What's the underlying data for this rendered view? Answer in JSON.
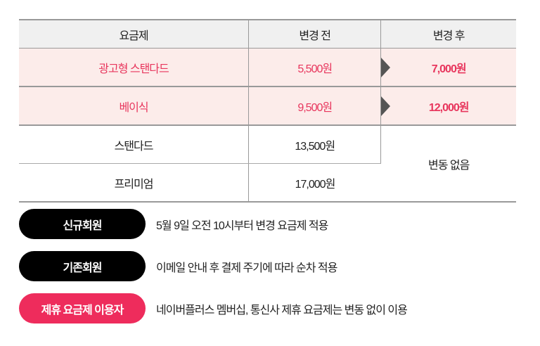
{
  "table": {
    "headers": [
      "요금제",
      "변경 전",
      "변경 후"
    ],
    "rows": [
      {
        "plan": "광고형 스탠다드",
        "before": "5,500원",
        "after": "7,000원"
      },
      {
        "plan": "베이식",
        "before": "9,500원",
        "after": "12,000원"
      },
      {
        "plan": "스탠다드",
        "before": "13,500원"
      },
      {
        "plan": "프리미엄",
        "before": "17,000원"
      }
    ],
    "no_change": "변동 없음",
    "highlight_color": "#e8365d"
  },
  "notes": [
    {
      "label": "신규회원",
      "text": "5월 9일 오전 10시부터 변경 요금제 적용",
      "color": "#000000"
    },
    {
      "label": "기존회원",
      "text": "이메일 안내 후 결제 주기에 따라 순차 적용",
      "color": "#000000"
    },
    {
      "label": "제휴 요금제 이용자",
      "text": "네이버플러스 멤버십, 통신사 제휴 요금제는 변동 없이 이용",
      "color": "#ee2c5c"
    }
  ]
}
